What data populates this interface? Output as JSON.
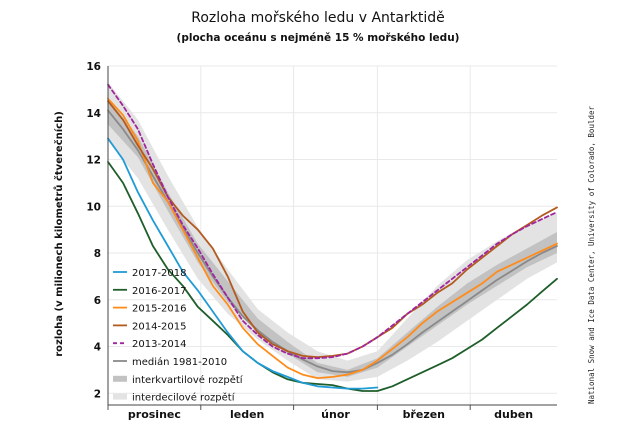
{
  "title": "Rozloha mořského ledu v Antarktidě",
  "subtitle": "(plocha oceánu s nejméně 15 % mořského ledu)",
  "credit": "National Snow and Ice Data Center, University of Colorado, Boulder",
  "chart_data": {
    "type": "line",
    "ylabel": "rozloha (v milionech kilometrů čtverečních)",
    "ylim": [
      1.5,
      16
    ],
    "yticks": [
      2,
      4,
      6,
      8,
      10,
      12,
      14,
      16
    ],
    "xlim": [
      0,
      150
    ],
    "months": [
      {
        "label": "prosinec",
        "start": 0
      },
      {
        "label": "leden",
        "start": 31
      },
      {
        "label": "únor",
        "start": 62
      },
      {
        "label": "březen",
        "start": 90
      },
      {
        "label": "duben",
        "start": 121
      }
    ],
    "grid": true,
    "legend_position": "bottom-left",
    "decile_band": {
      "name": "interdecilové rozpětí",
      "color": "#e3e3e3",
      "x": [
        0,
        10,
        20,
        30,
        40,
        50,
        60,
        70,
        80,
        90,
        100,
        110,
        120,
        130,
        140,
        150
      ],
      "low": [
        12.8,
        11.2,
        9.0,
        6.9,
        5.4,
        4.3,
        3.4,
        2.6,
        2.5,
        2.7,
        3.4,
        4.2,
        5.1,
        6.0,
        6.9,
        7.6
      ],
      "high": [
        15.3,
        13.7,
        11.3,
        9.1,
        7.3,
        5.6,
        4.6,
        3.8,
        3.4,
        3.8,
        5.2,
        6.6,
        7.7,
        8.5,
        9.2,
        9.7
      ]
    },
    "quartile_band": {
      "name": "interkvartilové rozpětí",
      "color": "#c2c2c2",
      "x": [
        0,
        10,
        20,
        30,
        40,
        50,
        60,
        70,
        80,
        90,
        100,
        110,
        120,
        130,
        140,
        150
      ],
      "low": [
        13.5,
        12.1,
        9.8,
        7.6,
        5.9,
        4.6,
        3.7,
        2.9,
        2.7,
        3.1,
        4.0,
        4.9,
        5.8,
        6.6,
        7.4,
        8.0
      ],
      "high": [
        14.6,
        13.0,
        10.6,
        8.4,
        6.8,
        5.2,
        4.2,
        3.3,
        3.0,
        3.5,
        4.6,
        5.7,
        6.7,
        7.5,
        8.2,
        8.9
      ]
    },
    "series": [
      {
        "name": "2017-2018",
        "color": "#1f9bd6",
        "dash": "",
        "x": [
          0,
          5,
          10,
          15,
          20,
          25,
          30,
          35,
          40,
          45,
          50,
          55,
          60,
          65,
          70,
          75,
          80,
          85,
          90
        ],
        "y": [
          12.9,
          12.0,
          10.6,
          9.4,
          8.3,
          7.2,
          6.4,
          5.5,
          4.6,
          3.8,
          3.3,
          2.95,
          2.7,
          2.45,
          2.3,
          2.25,
          2.2,
          2.2,
          2.25
        ]
      },
      {
        "name": "2016-2017",
        "color": "#1e5e2a",
        "dash": "",
        "x": [
          0,
          5,
          10,
          15,
          20,
          25,
          30,
          35,
          40,
          45,
          50,
          55,
          60,
          65,
          70,
          75,
          80,
          85,
          90,
          95,
          100,
          105,
          110,
          115,
          120,
          125,
          130,
          135,
          140,
          145,
          150
        ],
        "y": [
          11.9,
          11.0,
          9.7,
          8.3,
          7.3,
          6.6,
          5.7,
          5.1,
          4.5,
          3.8,
          3.3,
          2.9,
          2.6,
          2.45,
          2.4,
          2.35,
          2.2,
          2.1,
          2.1,
          2.3,
          2.6,
          2.9,
          3.2,
          3.5,
          3.9,
          4.3,
          4.8,
          5.3,
          5.8,
          6.35,
          6.9
        ]
      },
      {
        "name": "2015-2016",
        "color": "#ff8c1a",
        "dash": "",
        "x": [
          0,
          5,
          10,
          15,
          20,
          25,
          30,
          35,
          40,
          45,
          50,
          55,
          60,
          65,
          70,
          75,
          80,
          85,
          90,
          95,
          100,
          105,
          110,
          115,
          120,
          125,
          130,
          135,
          140,
          145,
          150
        ],
        "y": [
          14.6,
          13.9,
          12.8,
          11.0,
          10.2,
          9.0,
          7.8,
          6.6,
          5.8,
          4.8,
          4.1,
          3.6,
          3.1,
          2.8,
          2.65,
          2.7,
          2.8,
          3.0,
          3.4,
          3.9,
          4.4,
          5.0,
          5.5,
          5.9,
          6.3,
          6.7,
          7.2,
          7.5,
          7.8,
          8.1,
          8.4
        ]
      },
      {
        "name": "2014-2015",
        "color": "#b35a1f",
        "dash": "",
        "x": [
          0,
          5,
          10,
          15,
          20,
          25,
          30,
          35,
          40,
          45,
          50,
          55,
          60,
          65,
          70,
          75,
          80,
          85,
          90,
          95,
          100,
          105,
          110,
          115,
          120,
          125,
          130,
          135,
          140,
          145,
          150
        ],
        "y": [
          14.5,
          13.7,
          12.6,
          11.6,
          10.4,
          9.6,
          9.0,
          8.2,
          7.0,
          5.5,
          4.6,
          4.1,
          3.8,
          3.6,
          3.55,
          3.6,
          3.7,
          4.0,
          4.4,
          4.8,
          5.4,
          5.8,
          6.3,
          6.7,
          7.3,
          7.8,
          8.3,
          8.8,
          9.2,
          9.6,
          9.95
        ]
      },
      {
        "name": "2013-2014",
        "color": "#a0259e",
        "dash": "4,3",
        "x": [
          0,
          5,
          10,
          15,
          20,
          25,
          30,
          35,
          40,
          45,
          50,
          55,
          60,
          65,
          70,
          75,
          80,
          85,
          90,
          95,
          100,
          105,
          110,
          115,
          120,
          125,
          130,
          135,
          140,
          145,
          150
        ],
        "y": [
          15.2,
          14.3,
          13.3,
          11.8,
          10.4,
          9.2,
          8.2,
          7.1,
          6.1,
          5.1,
          4.5,
          4.0,
          3.7,
          3.5,
          3.5,
          3.55,
          3.7,
          4.0,
          4.4,
          4.9,
          5.4,
          5.9,
          6.4,
          6.9,
          7.4,
          7.9,
          8.4,
          8.8,
          9.15,
          9.45,
          9.75
        ]
      },
      {
        "name": "medián 1981-2010",
        "color": "#8a8a8a",
        "dash": "",
        "x": [
          0,
          5,
          10,
          15,
          20,
          25,
          30,
          35,
          40,
          45,
          50,
          55,
          60,
          65,
          70,
          75,
          80,
          85,
          90,
          95,
          100,
          105,
          110,
          115,
          120,
          125,
          130,
          135,
          140,
          145,
          150
        ],
        "y": [
          14.1,
          13.3,
          12.4,
          11.3,
          10.2,
          9.1,
          8.0,
          7.0,
          6.1,
          5.3,
          4.7,
          4.2,
          3.8,
          3.45,
          3.15,
          2.95,
          2.9,
          3.0,
          3.3,
          3.65,
          4.1,
          4.6,
          5.05,
          5.5,
          5.95,
          6.4,
          6.85,
          7.25,
          7.65,
          8.0,
          8.3
        ]
      }
    ]
  }
}
